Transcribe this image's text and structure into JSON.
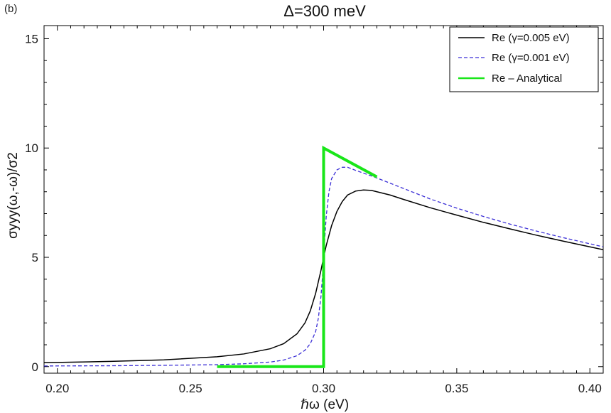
{
  "chart_data": {
    "type": "line",
    "panel_label": "(b)",
    "title": "Δ=300 meV",
    "xlabel": "ℏω (eV)",
    "ylabel": "σyyy(ω,-ω)/σ2",
    "xlim": [
      0.195,
      0.405
    ],
    "ylim": [
      -0.3,
      15.6
    ],
    "x_ticks": [
      0.2,
      0.25,
      0.3,
      0.35,
      0.4
    ],
    "x_tick_labels": [
      "0.20",
      "0.25",
      "0.30",
      "0.35",
      "0.40"
    ],
    "y_ticks": [
      0,
      5,
      10,
      15
    ],
    "y_tick_labels": [
      "0",
      "5",
      "10",
      "15"
    ],
    "legend_position": "top-right",
    "series": [
      {
        "name": "Re (γ=0.005 eV)",
        "legend_label": "Re (γ=0.005 eV)",
        "color": "#000000",
        "style": "solid",
        "x": [
          0.195,
          0.2,
          0.22,
          0.24,
          0.26,
          0.27,
          0.28,
          0.285,
          0.29,
          0.293,
          0.295,
          0.297,
          0.299,
          0.3,
          0.301,
          0.303,
          0.305,
          0.307,
          0.309,
          0.312,
          0.315,
          0.318,
          0.32,
          0.325,
          0.33,
          0.34,
          0.35,
          0.36,
          0.37,
          0.38,
          0.39,
          0.4,
          0.405
        ],
        "y": [
          0.18,
          0.19,
          0.24,
          0.31,
          0.45,
          0.58,
          0.82,
          1.05,
          1.5,
          2.0,
          2.55,
          3.35,
          4.4,
          5.0,
          5.55,
          6.45,
          7.1,
          7.55,
          7.85,
          8.03,
          8.08,
          8.06,
          8.0,
          7.85,
          7.65,
          7.27,
          6.93,
          6.6,
          6.3,
          6.01,
          5.74,
          5.48,
          5.35
        ]
      },
      {
        "name": "Re (γ=0.001 eV)",
        "legend_label": "Re (γ=0.001 eV)",
        "color": "#3b2fd6",
        "style": "dashed",
        "x": [
          0.195,
          0.22,
          0.24,
          0.26,
          0.27,
          0.28,
          0.285,
          0.29,
          0.293,
          0.295,
          0.297,
          0.298,
          0.299,
          0.2995,
          0.3,
          0.3005,
          0.301,
          0.302,
          0.303,
          0.305,
          0.307,
          0.309,
          0.312,
          0.315,
          0.32,
          0.33,
          0.34,
          0.35,
          0.36,
          0.37,
          0.38,
          0.39,
          0.4,
          0.405
        ],
        "y": [
          0.03,
          0.04,
          0.06,
          0.09,
          0.13,
          0.21,
          0.3,
          0.5,
          0.75,
          1.05,
          1.6,
          2.2,
          3.2,
          4.0,
          5.0,
          6.0,
          6.9,
          8.0,
          8.6,
          9.0,
          9.12,
          9.12,
          8.98,
          8.85,
          8.63,
          8.15,
          7.67,
          7.25,
          6.87,
          6.52,
          6.2,
          5.9,
          5.62,
          5.48
        ]
      },
      {
        "name": "Re - Analytical",
        "legend_label": "Re – Analytical",
        "color": "#19e619",
        "style": "solid-thick",
        "x": [
          0.26,
          0.3,
          0.3,
          0.32
        ],
        "y": [
          0.0,
          0.0,
          10.0,
          8.68
        ]
      }
    ]
  }
}
